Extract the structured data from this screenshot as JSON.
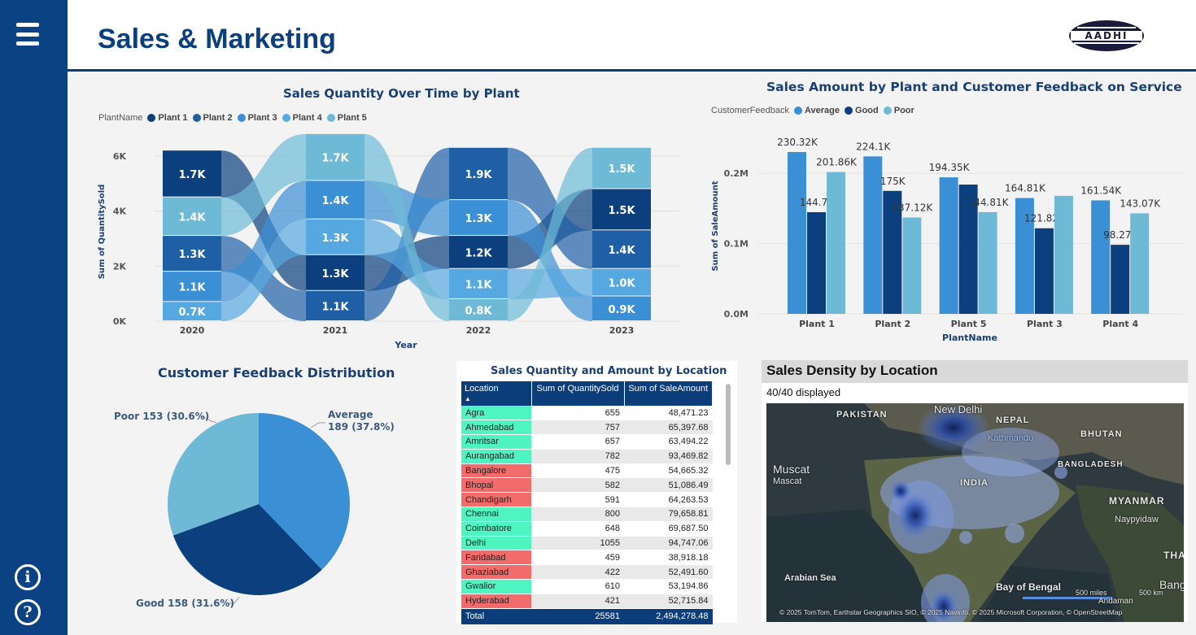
{
  "page": {
    "title": "Sales & Marketing"
  },
  "logo": {
    "text": "AADHI"
  },
  "colors": {
    "sidebar": "#0a4283",
    "plant1": "#0b3f7e",
    "plant2": "#1f5fa6",
    "plant3": "#3b8fd4",
    "plant4": "#56a8e0",
    "plant5": "#6ebad6",
    "average": "#3b8fd4",
    "good": "#0b3f7e",
    "poor": "#6ebad6",
    "row_green": "#4ef5c0",
    "row_red": "#f46b6b"
  },
  "icons": {
    "menu": "hamburger-menu-icon",
    "info": "info-icon",
    "help": "help-icon"
  },
  "ribbon_chart": {
    "title": "Sales Quantity Over Time by Plant",
    "legend_title": "PlantName",
    "legend": [
      "Plant 1",
      "Plant 2",
      "Plant 3",
      "Plant 4",
      "Plant 5"
    ],
    "xlabel": "Year",
    "ylabel": "Sum of QuantitySold",
    "yticks": [
      "0K",
      "2K",
      "4K",
      "6K"
    ]
  },
  "bar_chart": {
    "title": "Sales Amount by Plant and Customer Feedback on Service",
    "legend_title": "CustomerFeedback",
    "legend": [
      "Average",
      "Good",
      "Poor"
    ],
    "xlabel": "PlantName",
    "ylabel": "Sum of SaleAmount",
    "yticks": [
      "0.0M",
      "0.1M",
      "0.2M"
    ]
  },
  "pie_chart": {
    "title": "Customer Feedback Distribution",
    "labels": [
      "Average 189 (37.8%)",
      "Good 158 (31.6%)",
      "Poor 153 (30.6%)"
    ]
  },
  "chart_data": [
    {
      "type": "area",
      "title": "Sales Quantity Over Time by Plant",
      "xlabel": "Year",
      "ylabel": "Sum of QuantitySold",
      "categories": [
        "2020",
        "2021",
        "2022",
        "2023"
      ],
      "ylim": [
        0,
        6500
      ],
      "series": [
        {
          "name": "Plant 1",
          "values": [
            1700,
            1300,
            1200,
            1500
          ],
          "labels": [
            "1.7K",
            "1.3K",
            "1.2K",
            "1.5K"
          ]
        },
        {
          "name": "Plant 2",
          "values": [
            1300,
            1100,
            1900,
            1400
          ],
          "labels": [
            "1.3K",
            "1.1K",
            "1.9K",
            "1.4K"
          ]
        },
        {
          "name": "Plant 3",
          "values": [
            1100,
            1400,
            1300,
            900.0
          ],
          "labels": [
            "1.1K",
            "1.4K",
            "1.3K",
            "0.9K"
          ]
        },
        {
          "name": "Plant 4",
          "values": [
            700,
            1300,
            1100,
            1000
          ],
          "labels": [
            "0.7K",
            "1.3K",
            "1.1K",
            "1.0K"
          ]
        },
        {
          "name": "Plant 5",
          "values": [
            1400,
            1700,
            800,
            1500
          ],
          "labels": [
            "1.4K",
            "1.7K",
            "0.8K",
            "1.5K"
          ]
        }
      ]
    },
    {
      "type": "bar",
      "title": "Sales Amount by Plant and Customer Feedback on Service",
      "xlabel": "PlantName",
      "ylabel": "Sum of SaleAmount",
      "categories": [
        "Plant 1",
        "Plant 2",
        "Plant 5",
        "Plant 3",
        "Plant 4"
      ],
      "ylim": [
        0,
        250000
      ],
      "series": [
        {
          "name": "Average",
          "values": [
            230320,
            224100,
            194350,
            164810,
            161540
          ],
          "labels": [
            "230.32K",
            "224.1K",
            "194.35K",
            "164.81K",
            "161.54K"
          ]
        },
        {
          "name": "Good",
          "values": [
            144700,
            175000,
            184000,
            121820,
            98270
          ],
          "labels": [
            "144.7K",
            "175K",
            "",
            "121.82K",
            "98.27K"
          ]
        },
        {
          "name": "Poor",
          "values": [
            201860,
            137120,
            144810,
            168000,
            143070
          ],
          "labels": [
            "201.86K",
            "137.12K",
            "144.81K",
            "",
            "143.07K"
          ]
        }
      ]
    },
    {
      "type": "pie",
      "title": "Customer Feedback Distribution",
      "categories": [
        "Average",
        "Good",
        "Poor"
      ],
      "values": [
        189,
        158,
        153
      ],
      "percent": [
        37.8,
        31.6,
        30.6
      ]
    }
  ],
  "table": {
    "title": "Sales Quantity and Amount by Location",
    "columns": [
      "Location",
      "Sum of QuantitySold",
      "Sum of SaleAmount"
    ],
    "rows": [
      {
        "location": "Agra",
        "qty": "655",
        "amount": "48,471.23",
        "flag": "green"
      },
      {
        "location": "Ahmedabad",
        "qty": "757",
        "amount": "65,397.68",
        "flag": "green"
      },
      {
        "location": "Amritsar",
        "qty": "657",
        "amount": "63,494.22",
        "flag": "green"
      },
      {
        "location": "Aurangabad",
        "qty": "782",
        "amount": "93,469.82",
        "flag": "green"
      },
      {
        "location": "Bangalore",
        "qty": "475",
        "amount": "54,665.32",
        "flag": "red"
      },
      {
        "location": "Bhopal",
        "qty": "582",
        "amount": "51,086.49",
        "flag": "red"
      },
      {
        "location": "Chandigarh",
        "qty": "591",
        "amount": "64,263.53",
        "flag": "red"
      },
      {
        "location": "Chennai",
        "qty": "800",
        "amount": "79,658.81",
        "flag": "green"
      },
      {
        "location": "Coimbatore",
        "qty": "648",
        "amount": "69,687.50",
        "flag": "green"
      },
      {
        "location": "Delhi",
        "qty": "1055",
        "amount": "94,747.06",
        "flag": "green"
      },
      {
        "location": "Faridabad",
        "qty": "459",
        "amount": "38,918.18",
        "flag": "red"
      },
      {
        "location": "Ghaziabad",
        "qty": "422",
        "amount": "52,491.60",
        "flag": "red"
      },
      {
        "location": "Gwalior",
        "qty": "610",
        "amount": "53,194.86",
        "flag": "green"
      },
      {
        "location": "Hyderabad",
        "qty": "421",
        "amount": "52,715.84",
        "flag": "red"
      }
    ],
    "total": {
      "label": "Total",
      "qty": "25581",
      "amount": "2,494,278.48"
    }
  },
  "map": {
    "title": "Sales Density by Location",
    "count": "40/40 displayed",
    "labels": [
      "PAKISTAN",
      "New Delhi",
      "NEPAL",
      "Kathmandu",
      "BHUTAN",
      "Muscat",
      "Mascat",
      "BANGLADESH",
      "INDIA",
      "MYANMAR",
      "Naypyidaw",
      "Arabian Sea",
      "Bay of Bengal",
      "THA",
      "Bang",
      "Andaman"
    ],
    "scale": [
      "500 miles",
      "500 km"
    ],
    "attribution": "© 2025 TomTom, Earthstar Geographics SIO, © 2025 Navinfo, © 2025 Microsoft Corporation, © OpenStreetMap"
  }
}
